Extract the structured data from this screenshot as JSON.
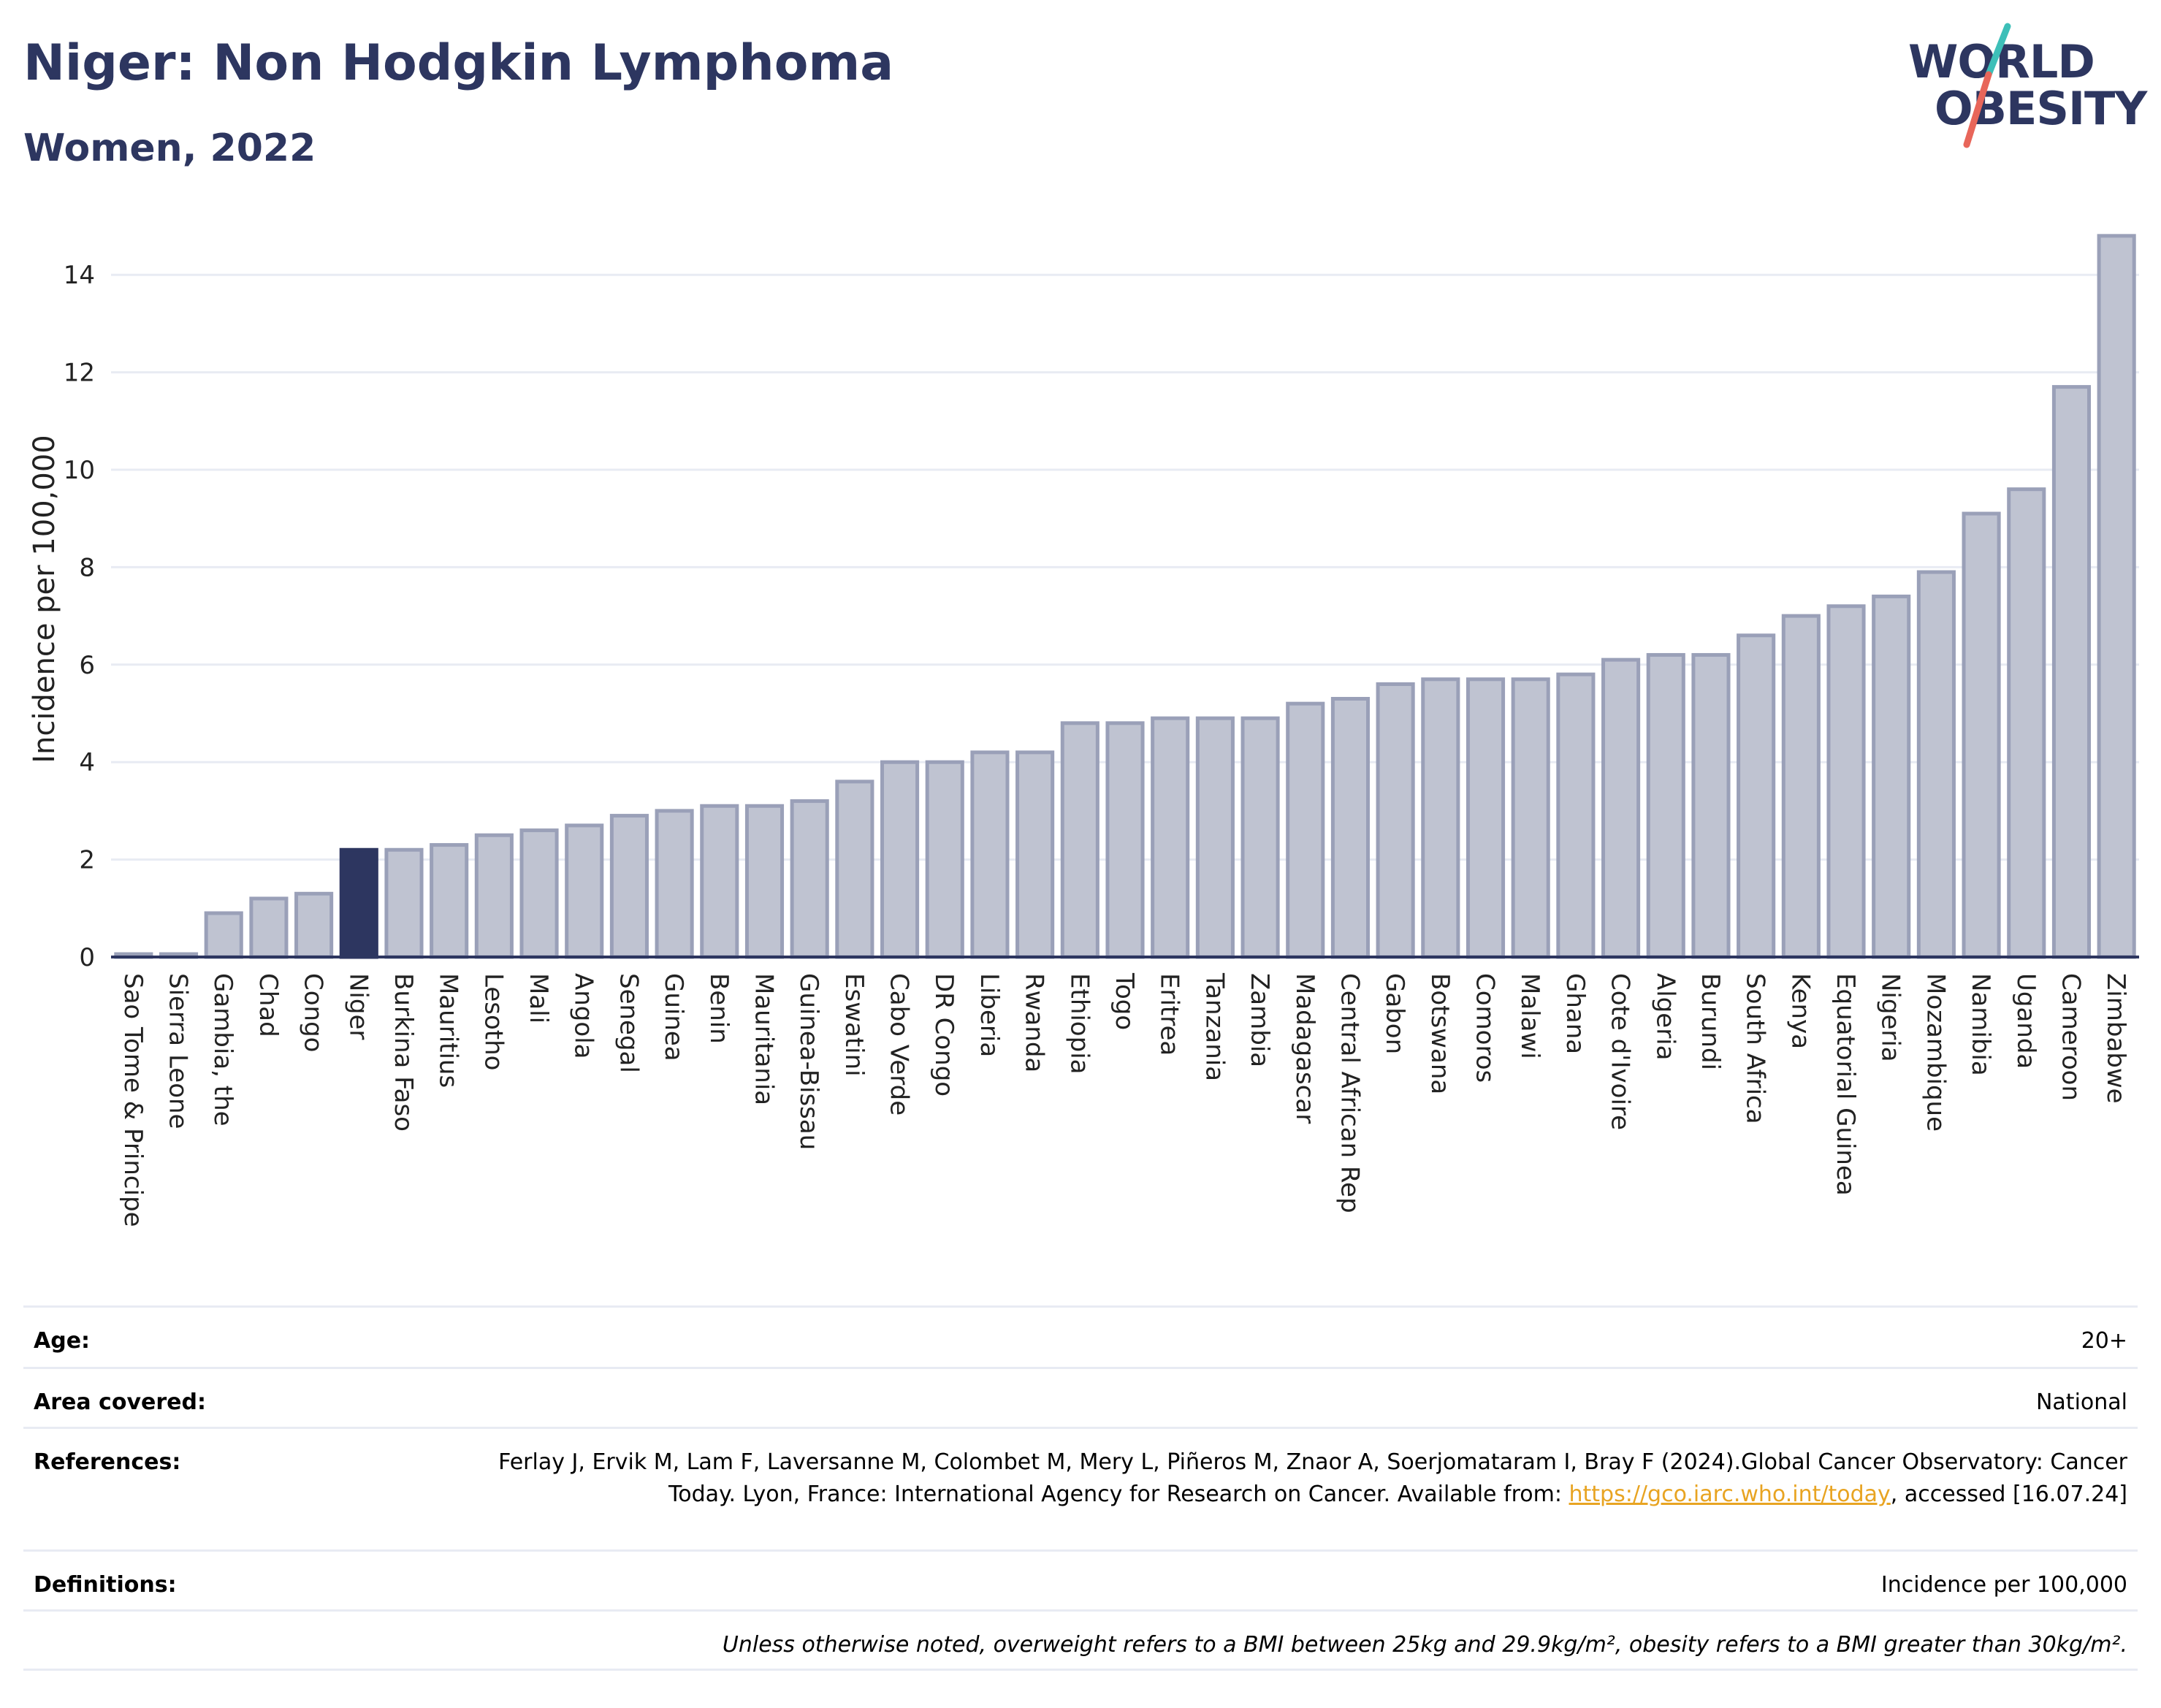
{
  "header": {
    "title": "Niger: Non Hodgkin Lymphoma",
    "subtitle": "Women, 2022"
  },
  "logo": {
    "line1": "WORLD",
    "line2": "OBESITY",
    "colors": {
      "text": "#2d3660",
      "slash_top": "#3dbfb8",
      "slash_bottom": "#e8665a"
    }
  },
  "colors": {
    "bar_fill": "#bfc3d1",
    "bar_stroke": "#9aa0b8",
    "highlight": "#2d3660",
    "grid": "#e8ebf3",
    "axis": "#2d3660"
  },
  "chart_data": {
    "type": "bar",
    "ylabel": "Incidence per 100,000",
    "ylim": [
      0,
      15
    ],
    "yticks": [
      0,
      2,
      4,
      6,
      8,
      10,
      12,
      14
    ],
    "grid": true,
    "highlight": "Niger",
    "categories": [
      "Sao Tome & Principe",
      "Sierra Leone",
      "Gambia, the",
      "Chad",
      "Congo",
      "Niger",
      "Burkina Faso",
      "Mauritius",
      "Lesotho",
      "Mali",
      "Angola",
      "Senegal",
      "Guinea",
      "Benin",
      "Mauritania",
      "Guinea-Bissau",
      "Eswatini",
      "Cabo Verde",
      "DR Congo",
      "Liberia",
      "Rwanda",
      "Ethiopia",
      "Togo",
      "Eritrea",
      "Tanzania",
      "Zambia",
      "Madagascar",
      "Central African Rep",
      "Gabon",
      "Botswana",
      "Comoros",
      "Malawi",
      "Ghana",
      "Cote d'Ivoire",
      "Algeria",
      "Burundi",
      "South Africa",
      "Kenya",
      "Equatorial Guinea",
      "Nigeria",
      "Mozambique",
      "Namibia",
      "Uganda",
      "Cameroon",
      "Zimbabwe"
    ],
    "values": [
      0.05,
      0.05,
      0.9,
      1.2,
      1.3,
      2.2,
      2.2,
      2.3,
      2.5,
      2.6,
      2.7,
      2.9,
      3.0,
      3.1,
      3.1,
      3.2,
      3.6,
      4.0,
      4.0,
      4.2,
      4.2,
      4.8,
      4.8,
      4.9,
      4.9,
      4.9,
      5.2,
      5.3,
      5.6,
      5.7,
      5.7,
      5.7,
      5.8,
      6.1,
      6.2,
      6.2,
      6.6,
      7.0,
      7.2,
      7.4,
      7.9,
      9.1,
      9.6,
      11.7,
      14.8
    ]
  },
  "info": {
    "age_label": "Age:",
    "age_value": "20+",
    "area_label": "Area covered:",
    "area_value": "National",
    "refs_label": "References:",
    "refs_text_1": "Ferlay J, Ervik M, Lam F, Laversanne M, Colombet M, Mery L, Piñeros M, Znaor A, Soerjomataram I, Bray F (2024).Global Cancer Observatory: Cancer Today. Lyon, France: International Agency for Research on Cancer. Available from: ",
    "refs_link": "https://gco.iarc.who.int/today",
    "refs_text_2": ", accessed [16.07.24]",
    "defs_label": "Definitions:",
    "defs_value": "Incidence per 100,000",
    "note": "Unless otherwise noted, overweight refers to a BMI between 25kg and 29.9kg/m², obesity refers to a BMI greater than 30kg/m²."
  }
}
